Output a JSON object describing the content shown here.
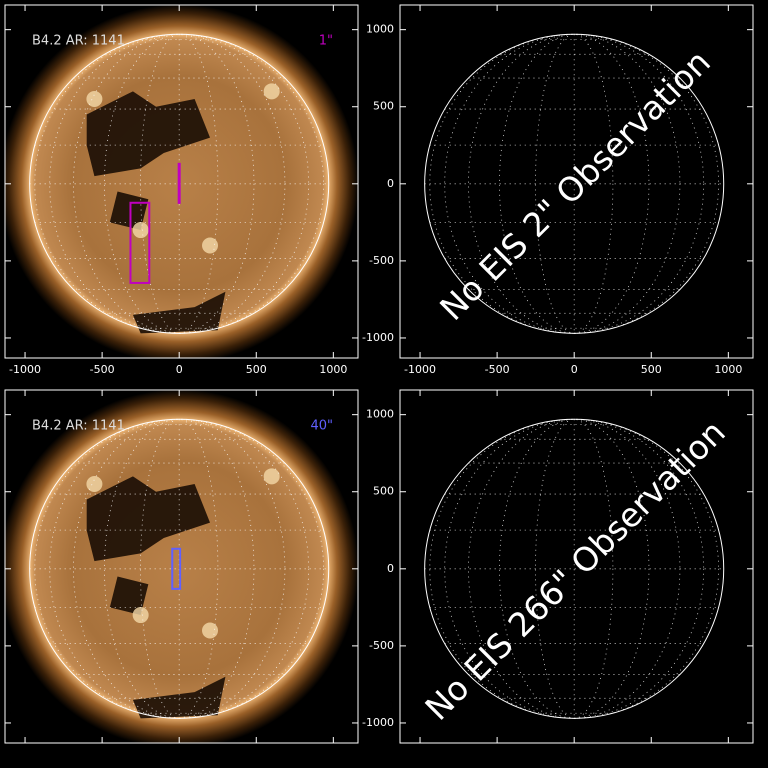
{
  "chart_data": [
    {
      "type": "solar-image",
      "label": "B4.2 AR: 1141",
      "scale_label": "1\"",
      "scale_color": "#c000c0",
      "xlim": [
        -1130,
        1160
      ],
      "ylim": [
        -1130,
        1160
      ],
      "xticks": [
        -1000,
        -500,
        0,
        500,
        1000
      ],
      "yticks": [
        -1000,
        -500,
        0,
        500,
        1000
      ],
      "xtick_labels": true,
      "ytick_labels": false,
      "disk_radius": 970,
      "raster": {
        "color": "#c000c0",
        "x": [
          -316,
          -194
        ],
        "y": [
          -643,
          -123
        ]
      },
      "slit": {
        "color": "#c000c0",
        "x": 0,
        "y": [
          -130,
          136
        ]
      }
    },
    {
      "type": "empty-map",
      "message": "No EIS 2\" Observation",
      "xlim": [
        -1130,
        1160
      ],
      "ylim": [
        -1130,
        1160
      ],
      "xticks": [
        -1000,
        -500,
        0,
        500,
        1000
      ],
      "yticks": [
        -1000,
        -500,
        0,
        500,
        1000
      ],
      "xtick_labels": true,
      "ytick_labels": true,
      "disk_radius": 970
    },
    {
      "type": "solar-image",
      "label": "B4.2 AR: 1141",
      "scale_label": "40\"",
      "scale_color": "#6060ff",
      "xlim": [
        -1130,
        1160
      ],
      "ylim": [
        -1130,
        1160
      ],
      "xticks": [
        -1000,
        -500,
        0,
        500,
        1000
      ],
      "yticks": [
        -1000,
        -500,
        0,
        500,
        1000
      ],
      "xtick_labels": false,
      "ytick_labels": false,
      "disk_radius": 970,
      "raster": {
        "color": "#6060ff",
        "x": [
          -45,
          6
        ],
        "y": [
          -130,
          130
        ]
      }
    },
    {
      "type": "empty-map",
      "message": "No EIS 266\" Observation",
      "xlim": [
        -1130,
        1160
      ],
      "ylim": [
        -1130,
        1160
      ],
      "xticks": [
        -1000,
        -500,
        0,
        500,
        1000
      ],
      "yticks": [
        -1000,
        -500,
        0,
        500,
        1000
      ],
      "xtick_labels": false,
      "ytick_labels": true,
      "disk_radius": 970
    }
  ]
}
